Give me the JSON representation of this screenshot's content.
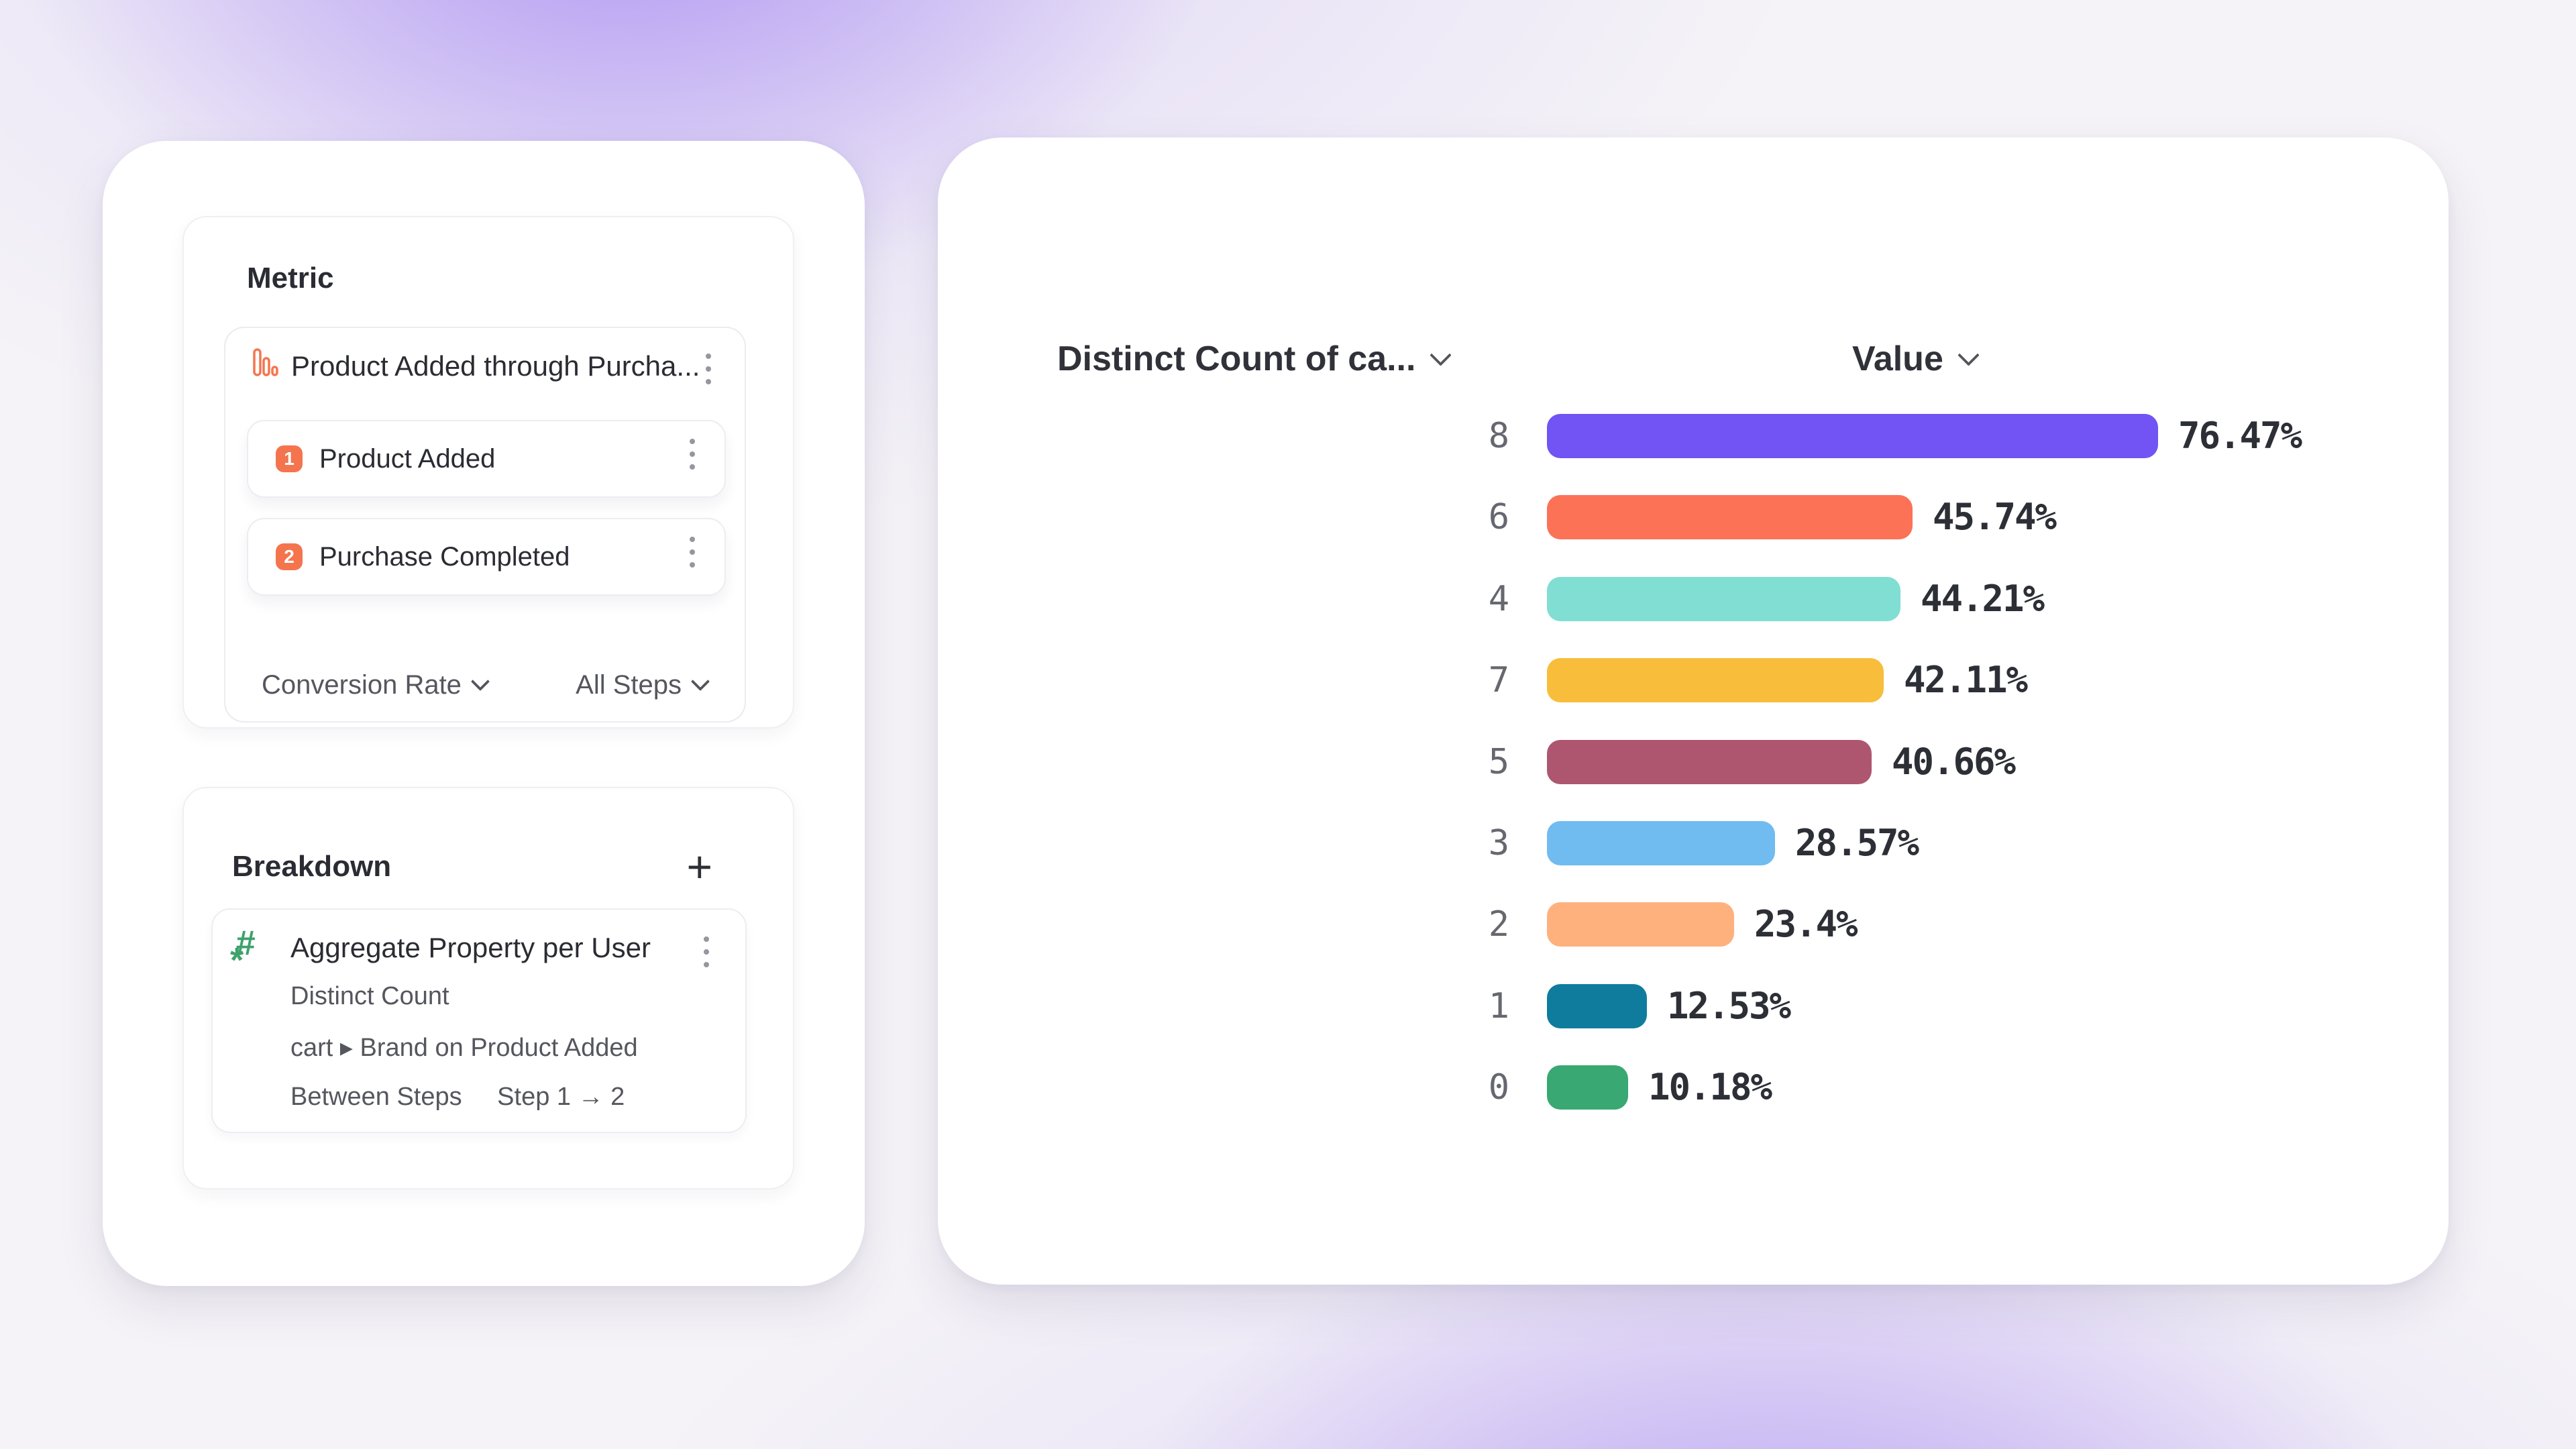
{
  "colors": {
    "accent_orange": "#F4744E",
    "accent_green": "#3EA16B",
    "glow_purple": "#8F6AEE",
    "card_bg": "#ffffff"
  },
  "metric_panel": {
    "title": "Metric",
    "funnel": {
      "icon": "funnel-bars-icon",
      "title": "Product Added through Purcha...",
      "menu_icon": "kebab-icon",
      "steps": [
        {
          "index": "1",
          "label": "Product Added"
        },
        {
          "index": "2",
          "label": "Purchase Completed"
        }
      ],
      "footer": {
        "measure_label": "Conversion Rate",
        "scope_label": "All Steps"
      }
    }
  },
  "breakdown_panel": {
    "title": "Breakdown",
    "add_icon": "plus-icon",
    "add_label": "+",
    "item": {
      "icon": "hash-asterisk-icon",
      "title": "Aggregate Property per User",
      "menu_icon": "kebab-icon",
      "aggregation": "Distinct Count",
      "property": "cart ▸ Brand on Product Added",
      "between_label": "Between Steps",
      "between_value": "Step 1 → 2"
    }
  },
  "chart": {
    "left_header": "Distinct Count of ca...",
    "right_header": "Value",
    "rows": [
      {
        "category": "8",
        "label": "76.47%",
        "value": 76.47,
        "color": "#7253F4"
      },
      {
        "category": "6",
        "label": "45.74%",
        "value": 45.74,
        "color": "#FC7257"
      },
      {
        "category": "4",
        "label": "44.21%",
        "value": 44.21,
        "color": "#80DED2"
      },
      {
        "category": "7",
        "label": "42.11%",
        "value": 42.11,
        "color": "#F8BD3B"
      },
      {
        "category": "5",
        "label": "40.66%",
        "value": 40.66,
        "color": "#AE5670"
      },
      {
        "category": "3",
        "label": "28.57%",
        "value": 28.57,
        "color": "#70BBF0"
      },
      {
        "category": "2",
        "label": "23.4%",
        "value": 23.4,
        "color": "#FEB17D"
      },
      {
        "category": "1",
        "label": "12.53%",
        "value": 12.53,
        "color": "#0F7C9E"
      },
      {
        "category": "0",
        "label": "10.18%",
        "value": 10.18,
        "color": "#39A872"
      }
    ]
  },
  "chart_data": {
    "type": "bar",
    "orientation": "horizontal",
    "title": "",
    "xlabel": "Value",
    "ylabel": "Distinct Count of ca...",
    "categories": [
      "8",
      "6",
      "4",
      "7",
      "5",
      "3",
      "2",
      "1",
      "0"
    ],
    "values": [
      76.47,
      45.74,
      44.21,
      42.11,
      40.66,
      28.57,
      23.4,
      12.53,
      10.18
    ],
    "value_labels": [
      "76.47%",
      "45.74%",
      "44.21%",
      "42.11%",
      "40.66%",
      "28.57%",
      "23.4%",
      "12.53%",
      "10.18%"
    ],
    "bar_colors": [
      "#7253F4",
      "#FC7257",
      "#80DED2",
      "#F8BD3B",
      "#AE5670",
      "#70BBF0",
      "#FEB17D",
      "#0F7C9E",
      "#39A872"
    ],
    "xlim": [
      0,
      100
    ],
    "grid": false,
    "legend": false
  }
}
